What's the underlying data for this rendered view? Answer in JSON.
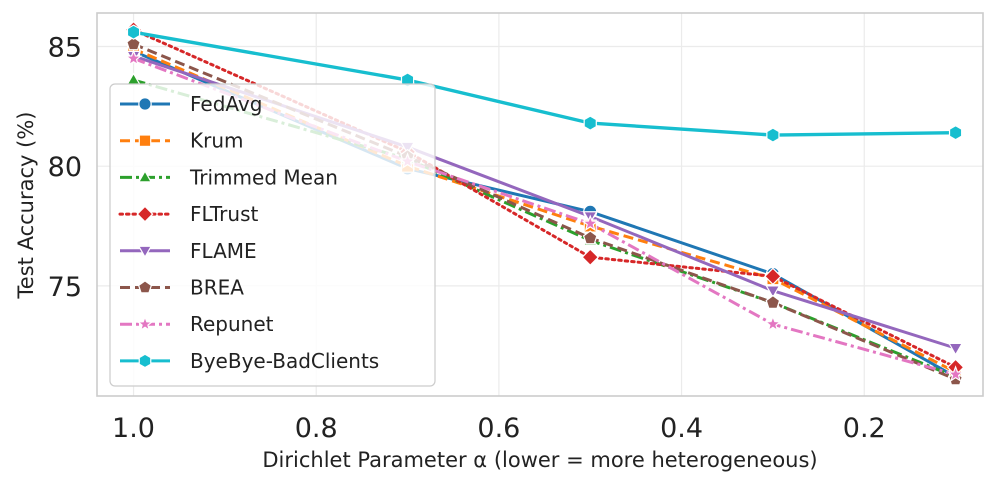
{
  "chart_data": {
    "type": "line",
    "title": "",
    "xlabel": "Dirichlet Parameter α (lower = more heterogeneous)",
    "ylabel": "Test Accuracy (%)",
    "x": [
      1.0,
      0.7,
      0.5,
      0.3,
      0.1
    ],
    "xlim": [
      1.04,
      0.07
    ],
    "ylim": [
      70.4,
      86.4
    ],
    "xticks": [
      1.0,
      0.8,
      0.6,
      0.4,
      0.2
    ],
    "xtick_labels": [
      "1.0",
      "0.8",
      "0.6",
      "0.4",
      "0.2"
    ],
    "yticks": [
      75,
      80,
      85
    ],
    "ytick_labels": [
      "75",
      "80",
      "85"
    ],
    "grid": true,
    "legend_position": "lower-left",
    "series": [
      {
        "name": "FedAvg",
        "values": [
          84.8,
          79.9,
          78.1,
          75.5,
          71.2
        ],
        "color": "#1f77b4",
        "dash": "solid",
        "marker": "circle"
      },
      {
        "name": "Krum",
        "values": [
          84.9,
          80.0,
          77.5,
          75.3,
          71.4
        ],
        "color": "#ff7f0e",
        "dash": "dashed",
        "marker": "square"
      },
      {
        "name": "Trimmed Mean",
        "values": [
          83.6,
          80.3,
          76.9,
          74.3,
          71.2
        ],
        "color": "#2ca02c",
        "dash": "dashdot",
        "marker": "triangle-up"
      },
      {
        "name": "FLTrust",
        "values": [
          85.7,
          80.6,
          76.2,
          75.4,
          71.6
        ],
        "color": "#d62728",
        "dash": "dotted",
        "marker": "diamond"
      },
      {
        "name": "FLAME",
        "values": [
          84.6,
          80.8,
          77.9,
          74.8,
          72.4
        ],
        "color": "#9467bd",
        "dash": "solid",
        "marker": "triangle-down"
      },
      {
        "name": "BREA",
        "values": [
          85.1,
          80.4,
          77.0,
          74.3,
          71.1
        ],
        "color": "#8c564b",
        "dash": "dashed",
        "marker": "pentagon"
      },
      {
        "name": "Repunet",
        "values": [
          84.5,
          80.2,
          77.6,
          73.4,
          71.3
        ],
        "color": "#e377c2",
        "dash": "dashdot",
        "marker": "star"
      },
      {
        "name": "ByeBye-BadClients",
        "values": [
          85.6,
          83.6,
          81.8,
          81.3,
          81.4
        ],
        "color": "#17becf",
        "dash": "solid",
        "marker": "hexagon"
      }
    ]
  }
}
